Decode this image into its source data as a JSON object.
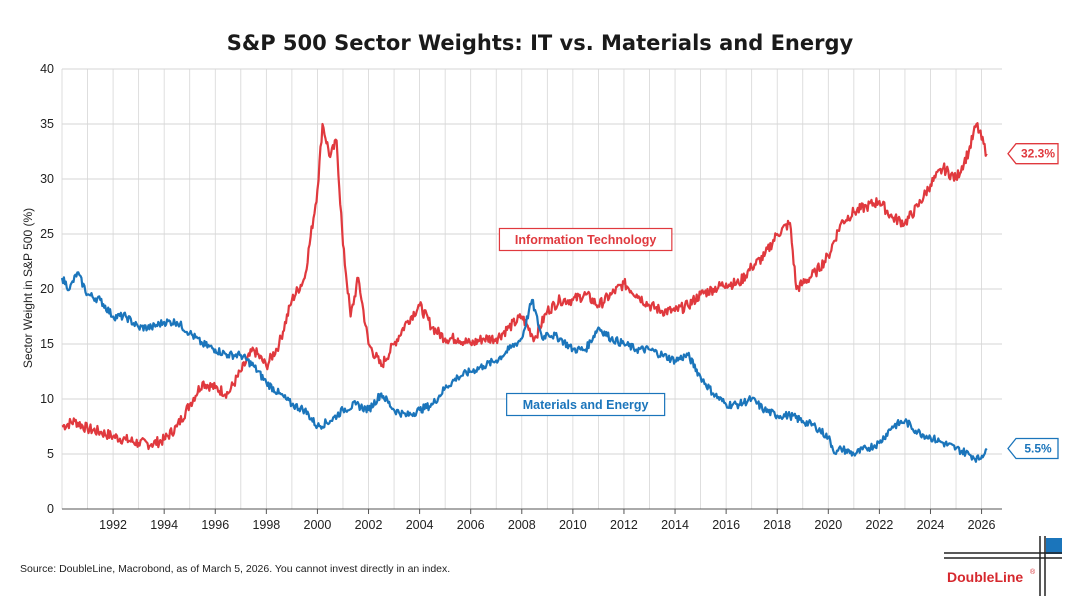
{
  "chart_data": {
    "type": "line",
    "title": "S&P 500 Sector Weights: IT vs. Materials and Energy",
    "xlabel": "",
    "ylabel": "Sector Weight in S&P 500 (%)",
    "xlim": [
      1990,
      2026.8
    ],
    "ylim": [
      0,
      40
    ],
    "yticks": [
      0,
      5,
      10,
      15,
      20,
      25,
      30,
      35,
      40
    ],
    "xticks": [
      1992,
      1994,
      1996,
      1998,
      2000,
      2002,
      2004,
      2006,
      2008,
      2010,
      2012,
      2014,
      2016,
      2018,
      2020,
      2022,
      2024,
      2026
    ],
    "grid": true,
    "series": [
      {
        "name": "Information Technology",
        "color": "#e0393e",
        "end_label": "32.3%",
        "points": [
          [
            1990.0,
            7.5
          ],
          [
            1990.5,
            8.0
          ],
          [
            1991.0,
            7.3
          ],
          [
            1991.5,
            7.0
          ],
          [
            1992.0,
            6.6
          ],
          [
            1992.5,
            6.3
          ],
          [
            1993.0,
            6.0
          ],
          [
            1993.5,
            5.9
          ],
          [
            1994.0,
            6.3
          ],
          [
            1994.5,
            7.5
          ],
          [
            1995.0,
            9.5
          ],
          [
            1995.5,
            11.5
          ],
          [
            1996.0,
            11.0
          ],
          [
            1996.5,
            10.5
          ],
          [
            1997.0,
            12.5
          ],
          [
            1997.5,
            14.5
          ],
          [
            1998.0,
            13.0
          ],
          [
            1998.5,
            15.0
          ],
          [
            1999.0,
            19.0
          ],
          [
            1999.5,
            21.0
          ],
          [
            2000.0,
            29.0
          ],
          [
            2000.2,
            35.0
          ],
          [
            2000.5,
            32.0
          ],
          [
            2000.75,
            33.5
          ],
          [
            2001.0,
            24.0
          ],
          [
            2001.3,
            17.5
          ],
          [
            2001.6,
            21.0
          ],
          [
            2002.0,
            15.0
          ],
          [
            2002.5,
            13.0
          ],
          [
            2003.0,
            15.0
          ],
          [
            2003.5,
            17.0
          ],
          [
            2004.0,
            18.5
          ],
          [
            2004.5,
            16.5
          ],
          [
            2005.0,
            15.5
          ],
          [
            2005.5,
            15.5
          ],
          [
            2006.0,
            15.0
          ],
          [
            2006.5,
            15.5
          ],
          [
            2007.0,
            15.5
          ],
          [
            2007.5,
            16.5
          ],
          [
            2008.0,
            17.5
          ],
          [
            2008.5,
            15.5
          ],
          [
            2009.0,
            18.0
          ],
          [
            2009.5,
            19.0
          ],
          [
            2010.0,
            19.0
          ],
          [
            2010.5,
            19.5
          ],
          [
            2011.0,
            18.5
          ],
          [
            2011.5,
            19.5
          ],
          [
            2012.0,
            20.5
          ],
          [
            2012.5,
            19.5
          ],
          [
            2013.0,
            18.5
          ],
          [
            2013.5,
            18.0
          ],
          [
            2014.0,
            18.0
          ],
          [
            2014.5,
            18.5
          ],
          [
            2015.0,
            19.5
          ],
          [
            2015.5,
            20.0
          ],
          [
            2016.0,
            20.5
          ],
          [
            2016.5,
            20.5
          ],
          [
            2017.0,
            22.0
          ],
          [
            2017.5,
            23.0
          ],
          [
            2018.0,
            25.0
          ],
          [
            2018.5,
            26.0
          ],
          [
            2018.75,
            20.0
          ],
          [
            2019.0,
            20.5
          ],
          [
            2019.5,
            21.5
          ],
          [
            2020.0,
            23.0
          ],
          [
            2020.5,
            26.0
          ],
          [
            2021.0,
            27.0
          ],
          [
            2021.5,
            27.5
          ],
          [
            2022.0,
            28.0
          ],
          [
            2022.5,
            26.5
          ],
          [
            2023.0,
            26.0
          ],
          [
            2023.5,
            27.5
          ],
          [
            2024.0,
            29.5
          ],
          [
            2024.5,
            31.0
          ],
          [
            2025.0,
            30.0
          ],
          [
            2025.5,
            32.5
          ],
          [
            2025.8,
            35.0
          ],
          [
            2026.2,
            32.3
          ]
        ]
      },
      {
        "name": "Materials and Energy",
        "color": "#1b75bb",
        "end_label": "5.5%",
        "points": [
          [
            1990.0,
            21.0
          ],
          [
            1990.3,
            20.0
          ],
          [
            1990.6,
            21.5
          ],
          [
            1991.0,
            19.5
          ],
          [
            1991.5,
            19.0
          ],
          [
            1992.0,
            17.5
          ],
          [
            1992.5,
            17.5
          ],
          [
            1993.0,
            16.5
          ],
          [
            1993.5,
            16.5
          ],
          [
            1994.0,
            17.0
          ],
          [
            1994.5,
            17.0
          ],
          [
            1995.0,
            16.0
          ],
          [
            1995.5,
            15.0
          ],
          [
            1996.0,
            14.5
          ],
          [
            1996.5,
            14.0
          ],
          [
            1997.0,
            14.0
          ],
          [
            1997.5,
            13.0
          ],
          [
            1998.0,
            11.5
          ],
          [
            1998.5,
            10.5
          ],
          [
            1999.0,
            9.5
          ],
          [
            1999.5,
            9.0
          ],
          [
            2000.0,
            7.5
          ],
          [
            2000.5,
            8.0
          ],
          [
            2001.0,
            9.0
          ],
          [
            2001.5,
            9.5
          ],
          [
            2002.0,
            9.0
          ],
          [
            2002.5,
            10.5
          ],
          [
            2003.0,
            9.0
          ],
          [
            2003.5,
            8.5
          ],
          [
            2004.0,
            9.0
          ],
          [
            2004.5,
            9.5
          ],
          [
            2005.0,
            11.0
          ],
          [
            2005.5,
            12.0
          ],
          [
            2006.0,
            12.5
          ],
          [
            2006.5,
            13.0
          ],
          [
            2007.0,
            13.5
          ],
          [
            2007.5,
            14.5
          ],
          [
            2008.0,
            15.5
          ],
          [
            2008.4,
            19.0
          ],
          [
            2008.8,
            15.5
          ],
          [
            2009.0,
            16.0
          ],
          [
            2009.5,
            15.5
          ],
          [
            2010.0,
            14.5
          ],
          [
            2010.5,
            14.5
          ],
          [
            2011.0,
            16.5
          ],
          [
            2011.5,
            15.5
          ],
          [
            2012.0,
            15.0
          ],
          [
            2012.5,
            14.5
          ],
          [
            2013.0,
            14.5
          ],
          [
            2013.5,
            14.0
          ],
          [
            2014.0,
            13.5
          ],
          [
            2014.5,
            14.0
          ],
          [
            2015.0,
            12.0
          ],
          [
            2015.5,
            10.5
          ],
          [
            2016.0,
            9.5
          ],
          [
            2016.5,
            9.5
          ],
          [
            2017.0,
            10.0
          ],
          [
            2017.5,
            9.0
          ],
          [
            2018.0,
            8.5
          ],
          [
            2018.5,
            8.5
          ],
          [
            2019.0,
            8.0
          ],
          [
            2019.5,
            7.5
          ],
          [
            2020.0,
            6.5
          ],
          [
            2020.3,
            5.0
          ],
          [
            2020.5,
            5.5
          ],
          [
            2021.0,
            5.0
          ],
          [
            2021.5,
            5.5
          ],
          [
            2022.0,
            6.0
          ],
          [
            2022.5,
            7.5
          ],
          [
            2023.0,
            8.0
          ],
          [
            2023.5,
            7.0
          ],
          [
            2024.0,
            6.5
          ],
          [
            2024.5,
            6.0
          ],
          [
            2025.0,
            5.5
          ],
          [
            2025.5,
            5.0
          ],
          [
            2025.9,
            4.5
          ],
          [
            2026.2,
            5.5
          ]
        ]
      }
    ],
    "annotations": [
      {
        "text": "Information Technology",
        "series": 0,
        "anchor": [
          2010.5,
          24.5
        ]
      },
      {
        "text": "Materials and Energy",
        "series": 1,
        "anchor": [
          2010.5,
          9.5
        ]
      }
    ]
  },
  "footer": {
    "source": "Source: DoubleLine, Macrobond, as of March 5, 2026. You cannot invest directly in an index.",
    "logo_text": "DoubleLine",
    "logo_mark": "®"
  },
  "colors": {
    "it": "#e0393e",
    "materials_energy": "#1b75bb",
    "grid": "#d6d6d6",
    "axis": "#555555",
    "logo_red": "#d6282e",
    "logo_blue": "#1b75bb"
  }
}
